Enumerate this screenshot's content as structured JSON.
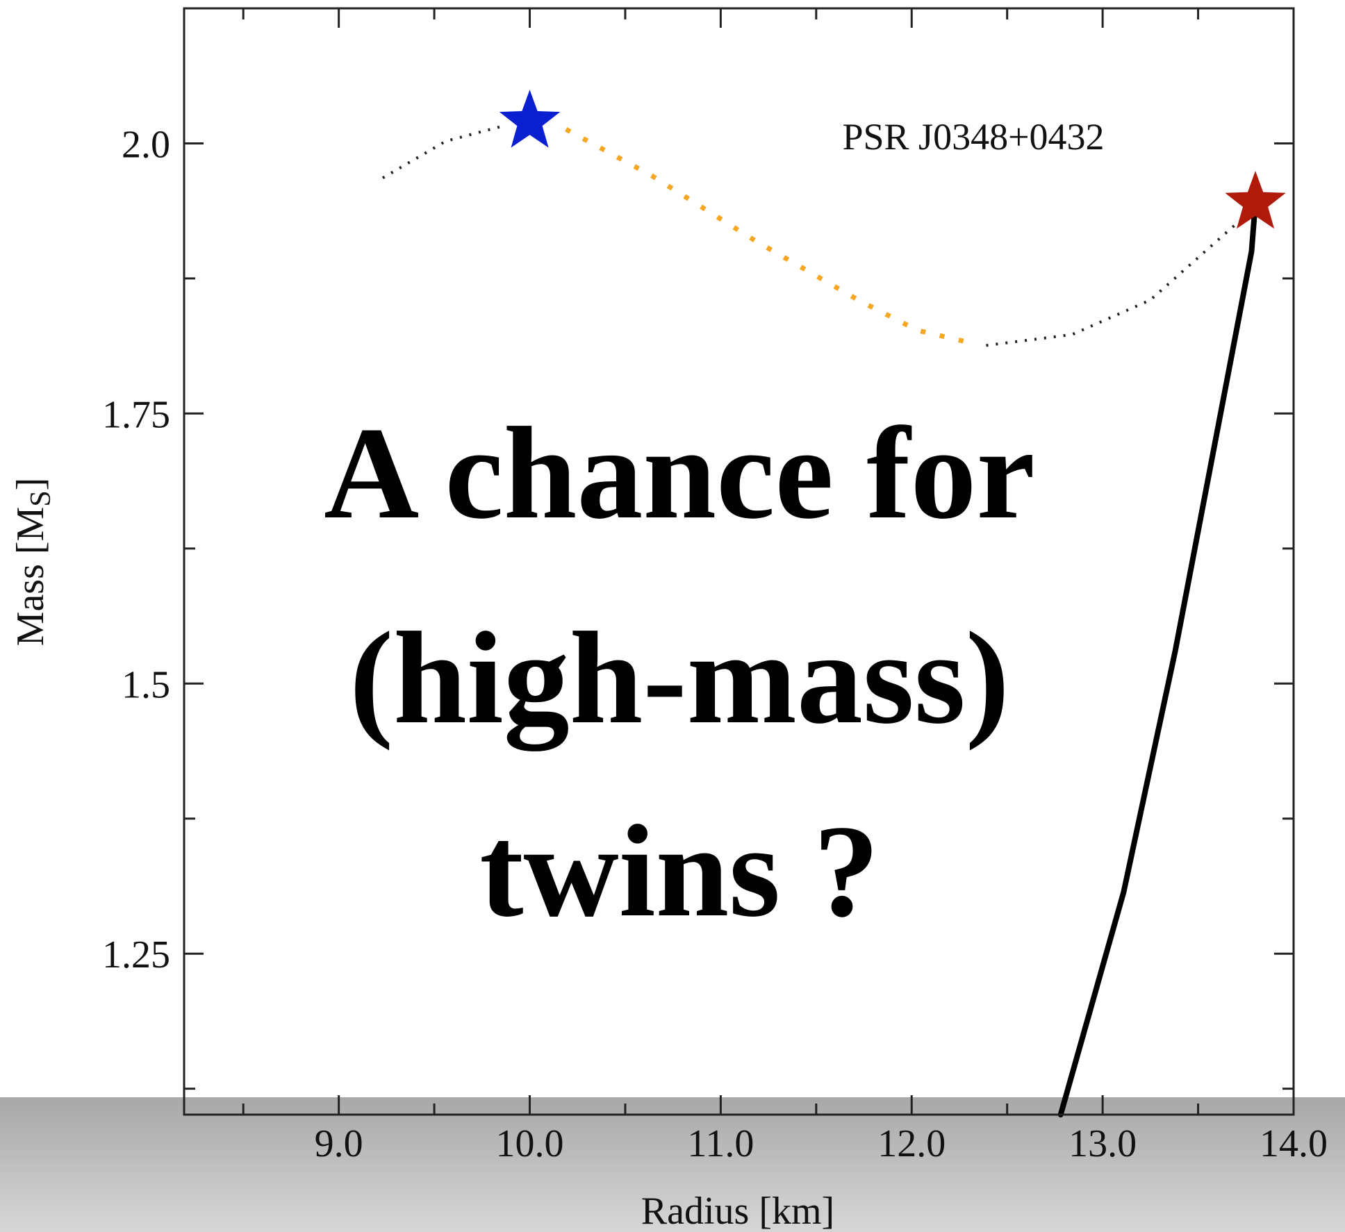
{
  "chart_data": {
    "type": "line",
    "xlabel": "Radius [km]",
    "ylabel": [
      "Mass [M",
      "S",
      "]"
    ],
    "annotation": "PSR J0348+0432",
    "overlay_text": [
      "A chance for",
      "(high-mass)",
      "twins ?"
    ],
    "xlim": [
      8.19,
      14.0
    ],
    "ylim": [
      1.101,
      2.125
    ],
    "xticks": [
      {
        "value": 9,
        "label": "9.0"
      },
      {
        "value": 10,
        "label": "10.0"
      },
      {
        "value": 11,
        "label": "11.0"
      },
      {
        "value": 12,
        "label": "12.0"
      },
      {
        "value": 13,
        "label": "13.0"
      },
      {
        "value": 14,
        "label": "14.0"
      }
    ],
    "yticks": [
      1.25,
      1.5,
      1.75,
      {
        "value": 2,
        "label": "2.0"
      }
    ],
    "xminorticks": [
      8.5,
      9.5,
      10.5,
      11.5,
      12.5,
      13.5
    ],
    "yminorticks": [
      1.125,
      1.375,
      1.625,
      1.875
    ],
    "series": [
      {
        "style": "dotted",
        "color": "#f5a623",
        "x": [
          10.19,
          10.64,
          11.18,
          11.72,
          12.03,
          12.32
        ],
        "values": [
          2.013,
          1.97,
          1.91,
          1.855,
          1.827,
          1.815
        ]
      },
      {
        "style": "dotted",
        "color": "#222222",
        "x": [
          9.23,
          9.56,
          9.88
        ],
        "values": [
          1.968,
          2.002,
          2.017
        ]
      },
      {
        "style": "dotted",
        "color": "#222222",
        "x": [
          12.39,
          12.84,
          13.25,
          13.6,
          13.78
        ],
        "values": [
          1.813,
          1.823,
          1.855,
          1.91,
          1.938
        ]
      },
      {
        "style": "solid",
        "color": "#000000",
        "x": [
          12.78,
          13.11,
          13.38,
          13.78,
          13.8
        ],
        "values": [
          1.101,
          1.307,
          1.53,
          1.9,
          1.945
        ]
      },
      {
        "style": "star",
        "color": "#0a1fd0",
        "x": [
          10.0
        ],
        "values": [
          2.02
        ]
      },
      {
        "style": "star",
        "color": "#b01a0a",
        "x": [
          13.8
        ],
        "values": [
          1.945
        ]
      }
    ]
  }
}
